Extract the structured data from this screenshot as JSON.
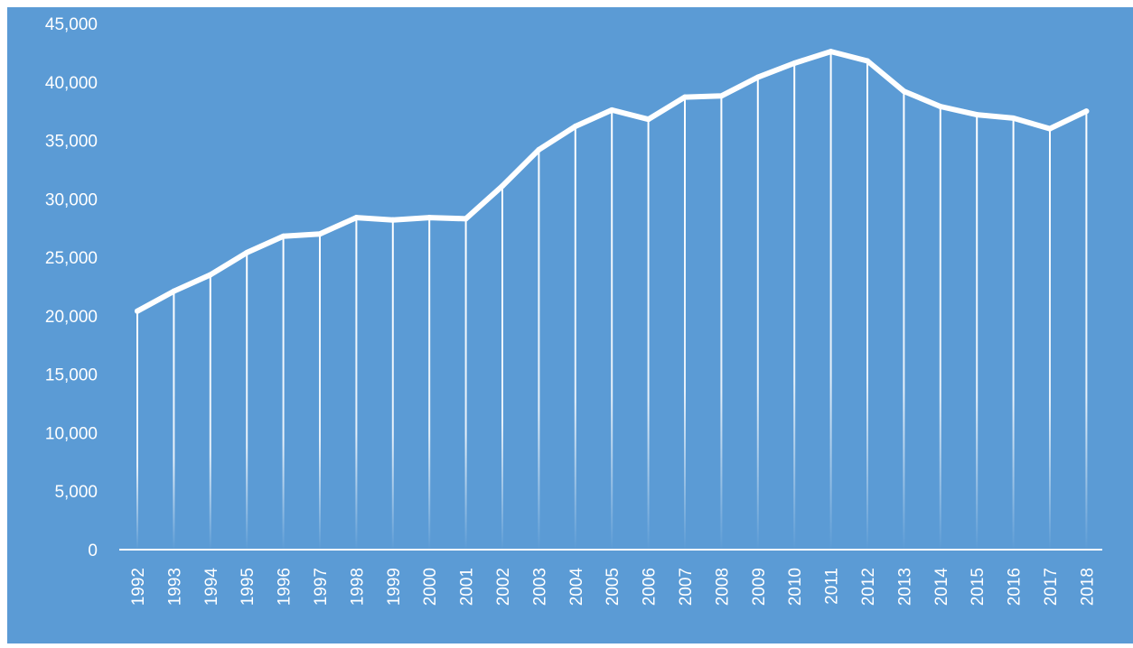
{
  "chart_data": {
    "type": "line",
    "title": "",
    "xlabel": "",
    "ylabel": "",
    "x": [
      "1992",
      "1993",
      "1994",
      "1995",
      "1996",
      "1997",
      "1998",
      "1999",
      "2000",
      "2001",
      "2002",
      "2003",
      "2004",
      "2005",
      "2006",
      "2007",
      "2008",
      "2009",
      "2010",
      "2011",
      "2012",
      "2013",
      "2014",
      "2015",
      "2016",
      "2017",
      "2018"
    ],
    "series": [
      {
        "values": [
          20400,
          22100,
          23500,
          25400,
          26800,
          27000,
          28400,
          28200,
          28400,
          28300,
          31100,
          34200,
          36200,
          37600,
          36800,
          38700,
          38800,
          40400,
          41600,
          42600,
          41800,
          39200,
          37900,
          37200,
          36900,
          36000,
          37500
        ]
      }
    ],
    "ylim": [
      0,
      45000
    ],
    "yticks": [
      0,
      5000,
      10000,
      15000,
      20000,
      25000,
      30000,
      35000,
      40000,
      45000
    ],
    "ytick_labels": [
      "0",
      "5,000",
      "10,000",
      "15,000",
      "20,000",
      "25,000",
      "30,000",
      "35,000",
      "40,000",
      "45,000"
    ],
    "grid": false,
    "drop_lines": true,
    "legend": "none",
    "colors": {
      "background": "#5b9bd5",
      "line": "#ffffff",
      "text": "#ffffff"
    }
  }
}
